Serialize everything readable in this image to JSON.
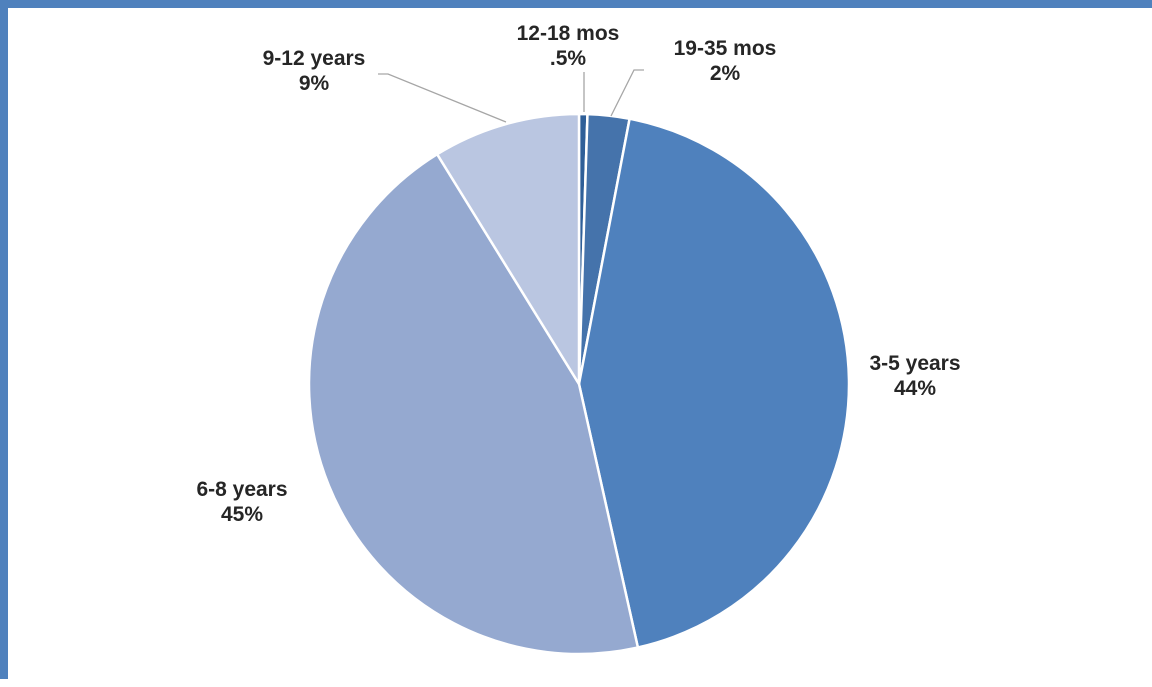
{
  "chart_data": {
    "type": "pie",
    "title": "",
    "slices": [
      {
        "label": "12-18 mos",
        "value_label": ".5%",
        "value": 0.5,
        "color": "#2f5f98"
      },
      {
        "label": "19-35 mos",
        "value_label": "2%",
        "value": 2.5,
        "color": "#4573ab"
      },
      {
        "label": "3-5 years",
        "value_label": "44%",
        "value": 43.5,
        "color": "#4f81bd"
      },
      {
        "label": "6-8 years",
        "value_label": "45%",
        "value": 44.7,
        "color": "#95a9d0"
      },
      {
        "label": "9-12 years",
        "value_label": "9%",
        "value": 8.8,
        "color": "#bac6e1"
      }
    ],
    "legend": "none",
    "colors": {
      "frame": "#4f81bd",
      "slice_border": "#ffffff",
      "leader_line": "#a6a6a6",
      "label_text": "#262626"
    }
  }
}
